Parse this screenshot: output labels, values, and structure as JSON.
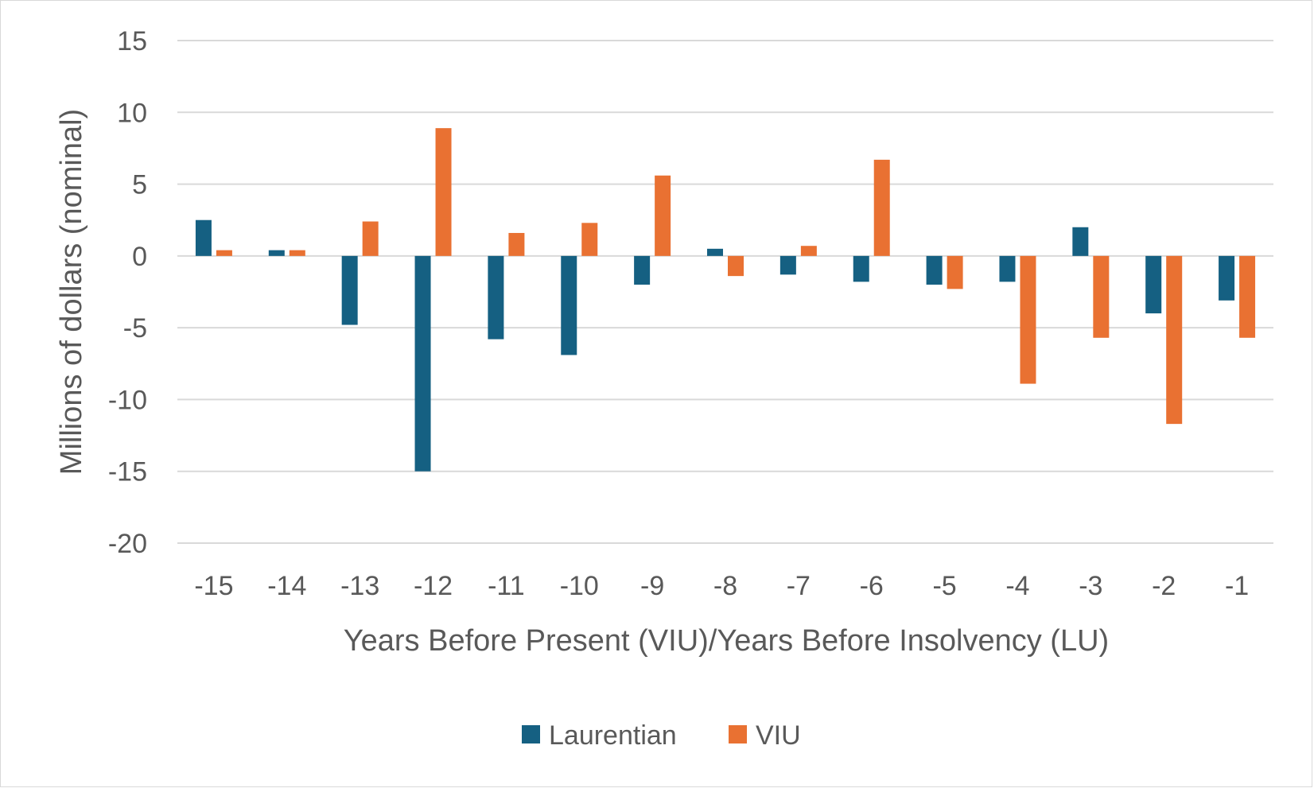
{
  "chart_data": {
    "type": "bar",
    "title": "",
    "xlabel": "Years Before Present (VIU)/Years Before Insolvency (LU)",
    "ylabel": "Millions of dollars (nominal)",
    "categories": [
      "-15",
      "-14",
      "-13",
      "-12",
      "-11",
      "-10",
      "-9",
      "-8",
      "-7",
      "-6",
      "-5",
      "-4",
      "-3",
      "-2",
      "-1"
    ],
    "series": [
      {
        "name": "Laurentian",
        "color": "#156082",
        "values": [
          2.5,
          0.4,
          -4.8,
          -15.0,
          -5.8,
          -6.9,
          -2.0,
          0.5,
          -1.3,
          -1.8,
          -2.0,
          -1.8,
          2.0,
          -4.0,
          -3.1
        ]
      },
      {
        "name": "VIU",
        "color": "#E97132",
        "values": [
          0.4,
          0.4,
          2.4,
          8.9,
          1.6,
          2.3,
          5.6,
          -1.4,
          0.7,
          6.7,
          -2.3,
          -8.9,
          -5.7,
          -11.7,
          -5.7
        ]
      }
    ],
    "ylim": [
      -20,
      15
    ],
    "yticks": [
      "15",
      "10",
      "5",
      "0",
      "-5",
      "-10",
      "-15",
      "-20"
    ],
    "ytick_values": [
      15,
      10,
      5,
      0,
      -5,
      -10,
      -15,
      -20
    ],
    "grid": true,
    "legend_position": "bottom"
  }
}
